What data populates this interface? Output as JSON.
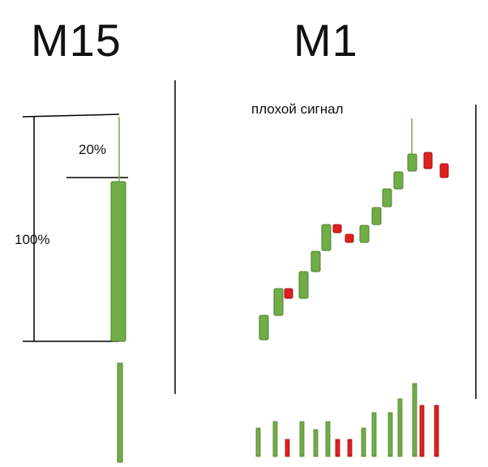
{
  "m15": {
    "title": "M15",
    "full_label": "100%",
    "wick_label": "20%",
    "candle": {
      "color": "green"
    },
    "volume": {
      "color": "green"
    }
  },
  "m1": {
    "title": "M1",
    "signal_label": "плохой сигнал",
    "candles": [
      "green",
      "green",
      "red",
      "green",
      "green",
      "green",
      "red",
      "red",
      "green",
      "green",
      "green",
      "green",
      "green",
      "red",
      "red"
    ],
    "volumes": [
      "green",
      "green",
      "red",
      "green",
      "green",
      "green",
      "red",
      "red",
      "green",
      "green",
      "green",
      "green",
      "green",
      "red",
      "red"
    ]
  },
  "colors": {
    "green": "#70ad47",
    "green_border": "#507e32",
    "red": "#e02020",
    "red_border": "#a01010"
  }
}
